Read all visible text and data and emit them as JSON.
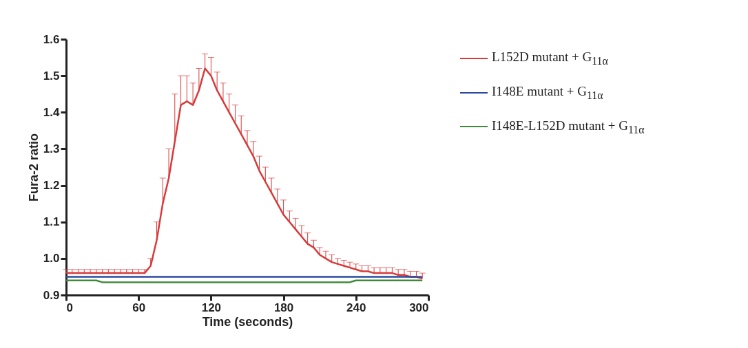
{
  "chart_data": {
    "type": "line",
    "xlabel": "Time (seconds)",
    "ylabel": "Fura-2 ratio",
    "x": [
      0,
      5,
      10,
      15,
      20,
      25,
      30,
      35,
      40,
      45,
      50,
      55,
      60,
      65,
      70,
      75,
      80,
      85,
      90,
      95,
      100,
      105,
      110,
      115,
      120,
      125,
      130,
      135,
      140,
      145,
      150,
      155,
      160,
      165,
      170,
      175,
      180,
      185,
      190,
      195,
      200,
      205,
      210,
      215,
      220,
      225,
      230,
      235,
      240,
      245,
      250,
      255,
      260,
      265,
      270,
      275,
      280,
      285,
      290,
      295
    ],
    "series": [
      {
        "name": "L152D mutant + G$_{11α}$",
        "color": "#d83a3a",
        "values": [
          0.96,
          0.96,
          0.96,
          0.96,
          0.96,
          0.96,
          0.96,
          0.96,
          0.96,
          0.96,
          0.96,
          0.96,
          0.96,
          0.96,
          0.98,
          1.05,
          1.15,
          1.22,
          1.32,
          1.42,
          1.43,
          1.42,
          1.46,
          1.52,
          1.5,
          1.46,
          1.43,
          1.4,
          1.37,
          1.34,
          1.31,
          1.28,
          1.24,
          1.21,
          1.18,
          1.15,
          1.12,
          1.1,
          1.08,
          1.06,
          1.04,
          1.03,
          1.01,
          1.0,
          0.99,
          0.985,
          0.98,
          0.975,
          0.97,
          0.965,
          0.965,
          0.96,
          0.96,
          0.96,
          0.96,
          0.955,
          0.955,
          0.95,
          0.95,
          0.945
        ],
        "errors": [
          [
            0.96,
            0.97
          ],
          [
            0.96,
            0.97
          ],
          [
            0.96,
            0.97
          ],
          [
            0.96,
            0.97
          ],
          [
            0.96,
            0.97
          ],
          [
            0.96,
            0.97
          ],
          [
            0.96,
            0.97
          ],
          [
            0.96,
            0.97
          ],
          [
            0.96,
            0.97
          ],
          [
            0.96,
            0.97
          ],
          [
            0.96,
            0.97
          ],
          [
            0.96,
            0.97
          ],
          [
            0.96,
            0.97
          ],
          [
            0.96,
            0.97
          ],
          [
            0.98,
            1.0
          ],
          [
            1.05,
            1.1
          ],
          [
            1.15,
            1.22
          ],
          [
            1.22,
            1.3
          ],
          [
            1.32,
            1.45
          ],
          [
            1.42,
            1.5
          ],
          [
            1.43,
            1.5
          ],
          [
            1.42,
            1.48
          ],
          [
            1.46,
            1.52
          ],
          [
            1.52,
            1.56
          ],
          [
            1.5,
            1.55
          ],
          [
            1.46,
            1.51
          ],
          [
            1.43,
            1.48
          ],
          [
            1.4,
            1.45
          ],
          [
            1.37,
            1.42
          ],
          [
            1.34,
            1.39
          ],
          [
            1.31,
            1.35
          ],
          [
            1.28,
            1.32
          ],
          [
            1.24,
            1.28
          ],
          [
            1.21,
            1.25
          ],
          [
            1.18,
            1.22
          ],
          [
            1.15,
            1.19
          ],
          [
            1.12,
            1.16
          ],
          [
            1.1,
            1.13
          ],
          [
            1.08,
            1.11
          ],
          [
            1.06,
            1.09
          ],
          [
            1.04,
            1.07
          ],
          [
            1.03,
            1.05
          ],
          [
            1.01,
            1.03
          ],
          [
            1.0,
            1.02
          ],
          [
            0.99,
            1.01
          ],
          [
            0.985,
            1.0
          ],
          [
            0.98,
            0.995
          ],
          [
            0.975,
            0.99
          ],
          [
            0.97,
            0.985
          ],
          [
            0.965,
            0.98
          ],
          [
            0.965,
            0.98
          ],
          [
            0.96,
            0.975
          ],
          [
            0.96,
            0.975
          ],
          [
            0.96,
            0.975
          ],
          [
            0.96,
            0.975
          ],
          [
            0.955,
            0.97
          ],
          [
            0.955,
            0.97
          ],
          [
            0.95,
            0.965
          ],
          [
            0.95,
            0.965
          ],
          [
            0.945,
            0.96
          ]
        ]
      },
      {
        "name": "I148E mutant + G$_{11α}$",
        "color": "#2b4aa0",
        "values": [
          0.95,
          0.95,
          0.95,
          0.95,
          0.95,
          0.95,
          0.95,
          0.95,
          0.95,
          0.95,
          0.95,
          0.95,
          0.95,
          0.95,
          0.95,
          0.95,
          0.95,
          0.95,
          0.95,
          0.95,
          0.95,
          0.95,
          0.95,
          0.95,
          0.95,
          0.95,
          0.95,
          0.95,
          0.95,
          0.95,
          0.95,
          0.95,
          0.95,
          0.95,
          0.95,
          0.95,
          0.95,
          0.95,
          0.95,
          0.95,
          0.95,
          0.95,
          0.95,
          0.95,
          0.95,
          0.95,
          0.95,
          0.95,
          0.95,
          0.95,
          0.95,
          0.95,
          0.95,
          0.95,
          0.95,
          0.95,
          0.95,
          0.95,
          0.95,
          0.95
        ]
      },
      {
        "name": "I148E-L152D mutant + G$_{11α}$",
        "color": "#3f8a3a",
        "values": [
          0.94,
          0.94,
          0.94,
          0.94,
          0.94,
          0.94,
          0.935,
          0.935,
          0.935,
          0.935,
          0.935,
          0.935,
          0.935,
          0.935,
          0.935,
          0.935,
          0.935,
          0.935,
          0.935,
          0.935,
          0.935,
          0.935,
          0.935,
          0.935,
          0.935,
          0.935,
          0.935,
          0.935,
          0.935,
          0.935,
          0.935,
          0.935,
          0.935,
          0.935,
          0.935,
          0.935,
          0.935,
          0.935,
          0.935,
          0.935,
          0.935,
          0.935,
          0.935,
          0.935,
          0.935,
          0.935,
          0.935,
          0.935,
          0.94,
          0.94,
          0.94,
          0.94,
          0.94,
          0.94,
          0.94,
          0.94,
          0.94,
          0.94,
          0.94,
          0.94
        ]
      }
    ],
    "xlim": [
      0,
      300
    ],
    "xticks": [
      0,
      60,
      120,
      180,
      240,
      300
    ],
    "ylim": [
      0.9,
      1.6
    ],
    "yticks": [
      0.9,
      {
        "value": 1,
        "label": "1.0"
      },
      1.1,
      1.2,
      1.3,
      1.4,
      1.5,
      1.6
    ],
    "legend": "right"
  }
}
